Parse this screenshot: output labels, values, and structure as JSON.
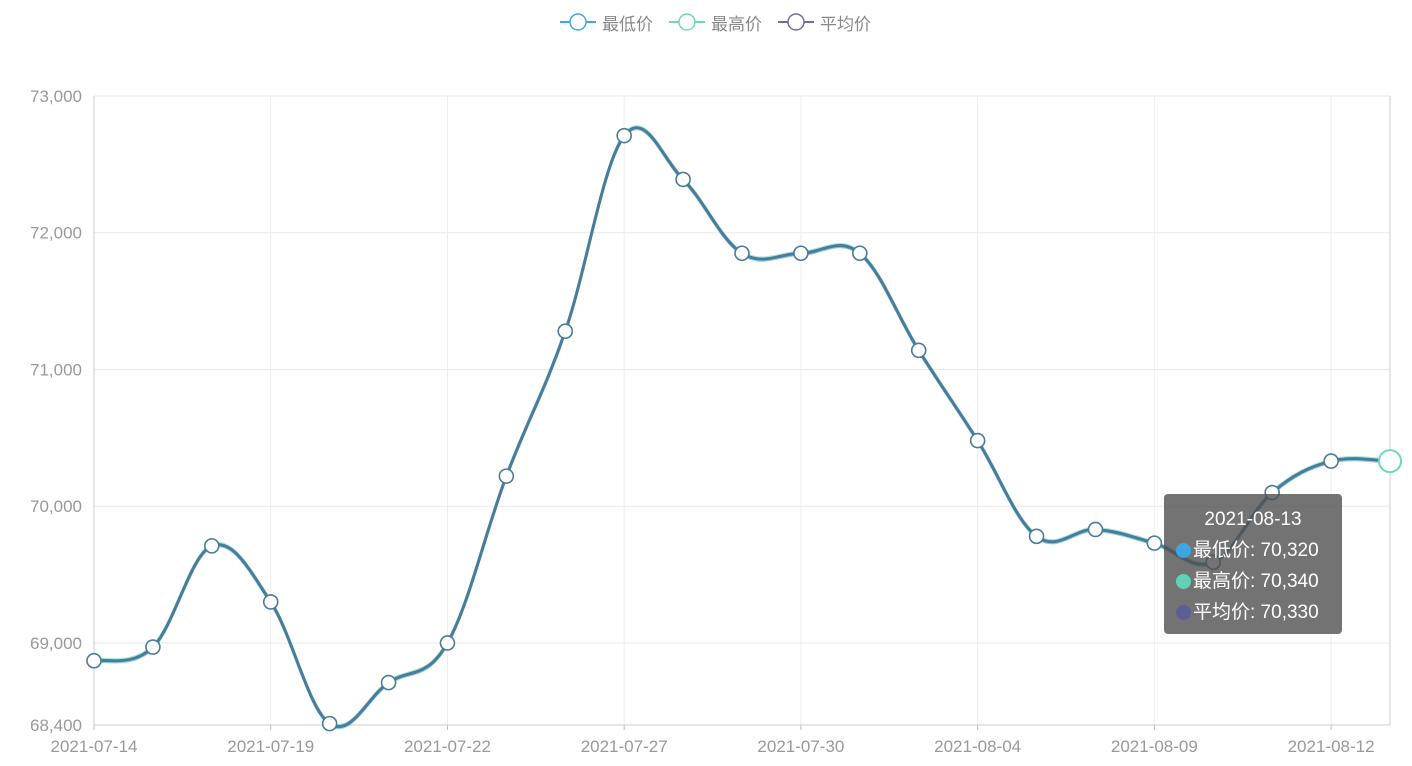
{
  "legend": {
    "items": [
      {
        "label": "最低价",
        "color": "#3fa9d8"
      },
      {
        "label": "最高价",
        "color": "#6ed7c0"
      },
      {
        "label": "平均价",
        "color": "#6b6fa0"
      }
    ]
  },
  "tooltip": {
    "date": "2021-08-13",
    "rows": [
      {
        "label": "最低价: 70,320",
        "color": "#3aa6e6"
      },
      {
        "label": "最高价: 70,340",
        "color": "#5fd3b5"
      },
      {
        "label": "平均价: 70,330",
        "color": "#5a5f9a"
      }
    ]
  },
  "chart_data": {
    "type": "line",
    "smooth": true,
    "y_ticks": [
      "68,400",
      "69,000",
      "70,000",
      "71,000",
      "72,000",
      "73,000"
    ],
    "x_tick_labels": [
      "2021-07-14",
      "2021-07-19",
      "2021-07-22",
      "2021-07-27",
      "2021-07-30",
      "2021-08-04",
      "2021-08-09",
      "2021-08-12"
    ],
    "ylim": [
      68400,
      73000
    ],
    "grid": true,
    "legend_position": "top-center",
    "line_color": "#4a7b9a",
    "categories": [
      "2021-07-14",
      "2021-07-15",
      "2021-07-16",
      "2021-07-19",
      "2021-07-20",
      "2021-07-21",
      "2021-07-22",
      "2021-07-23",
      "2021-07-26",
      "2021-07-27",
      "2021-07-28",
      "2021-07-29",
      "2021-07-30",
      "2021-08-02",
      "2021-08-03",
      "2021-08-04",
      "2021-08-05",
      "2021-08-06",
      "2021-08-09",
      "2021-08-10",
      "2021-08-11",
      "2021-08-12",
      "2021-08-13"
    ],
    "series": [
      {
        "name": "最低价",
        "color": "#3fa9d8",
        "values": [
          68860,
          68960,
          69700,
          69290,
          68400,
          68700,
          68990,
          70210,
          71270,
          72700,
          72380,
          71840,
          71840,
          71840,
          71130,
          70470,
          69770,
          69820,
          69720,
          69580,
          70090,
          70320,
          70320
        ]
      },
      {
        "name": "最高价",
        "color": "#6ed7c0",
        "values": [
          68880,
          68980,
          69720,
          69310,
          68420,
          68720,
          69010,
          70230,
          71290,
          72720,
          72400,
          71860,
          71860,
          71860,
          71150,
          70490,
          69790,
          69840,
          69740,
          69600,
          70110,
          70340,
          70340
        ]
      },
      {
        "name": "平均价",
        "color": "#6b6fa0",
        "values": [
          68870,
          68970,
          69710,
          69300,
          68410,
          68710,
          69000,
          70220,
          71280,
          72710,
          72390,
          71850,
          71850,
          71850,
          71140,
          70480,
          69780,
          69830,
          69730,
          69590,
          70100,
          70330,
          70330
        ]
      }
    ]
  }
}
